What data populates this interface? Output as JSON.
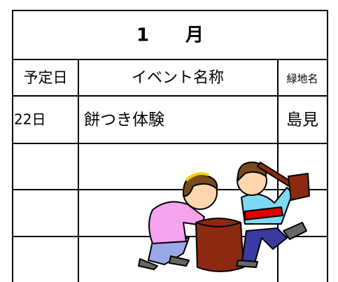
{
  "table": {
    "title": "1　　月",
    "header": [
      "予定日",
      "イベント名称",
      "緑地名"
    ],
    "rows": [
      [
        "22日",
        "餅つき体験",
        "島見"
      ]
    ]
  }
}
